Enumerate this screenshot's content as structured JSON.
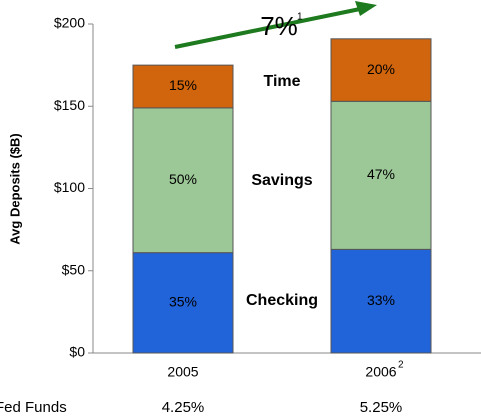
{
  "chart_data": {
    "type": "stacked-bar",
    "y_label": "Avg Deposits ($B)",
    "categories": [
      "2005",
      "2006"
    ],
    "category_footnotes": [
      null,
      "2"
    ],
    "series": [
      {
        "name": "Checking",
        "color": "#2163d9",
        "values": [
          61,
          63
        ],
        "value_labels": [
          "35%",
          "33%"
        ]
      },
      {
        "name": "Savings",
        "color": "#9cc797",
        "values": [
          88,
          90
        ],
        "value_labels": [
          "50%",
          "47%"
        ]
      },
      {
        "name": "Time",
        "color": "#d0650e",
        "values": [
          26,
          38
        ],
        "value_labels": [
          "15%",
          "20%"
        ]
      }
    ],
    "ylim": [
      0,
      200
    ],
    "yticks": [
      {
        "value": 0,
        "label": "$0"
      },
      {
        "value": 50,
        "label": "$50"
      },
      {
        "value": 100,
        "label": "$100"
      },
      {
        "value": 150,
        "label": "$150"
      },
      {
        "value": 200,
        "label": "$200"
      }
    ],
    "annotation": {
      "text": "7%",
      "footnote": "1",
      "color": "#1e7a1e"
    },
    "footer": {
      "label": "Fed Funds",
      "values": [
        "4.25%",
        "5.25%"
      ]
    }
  }
}
